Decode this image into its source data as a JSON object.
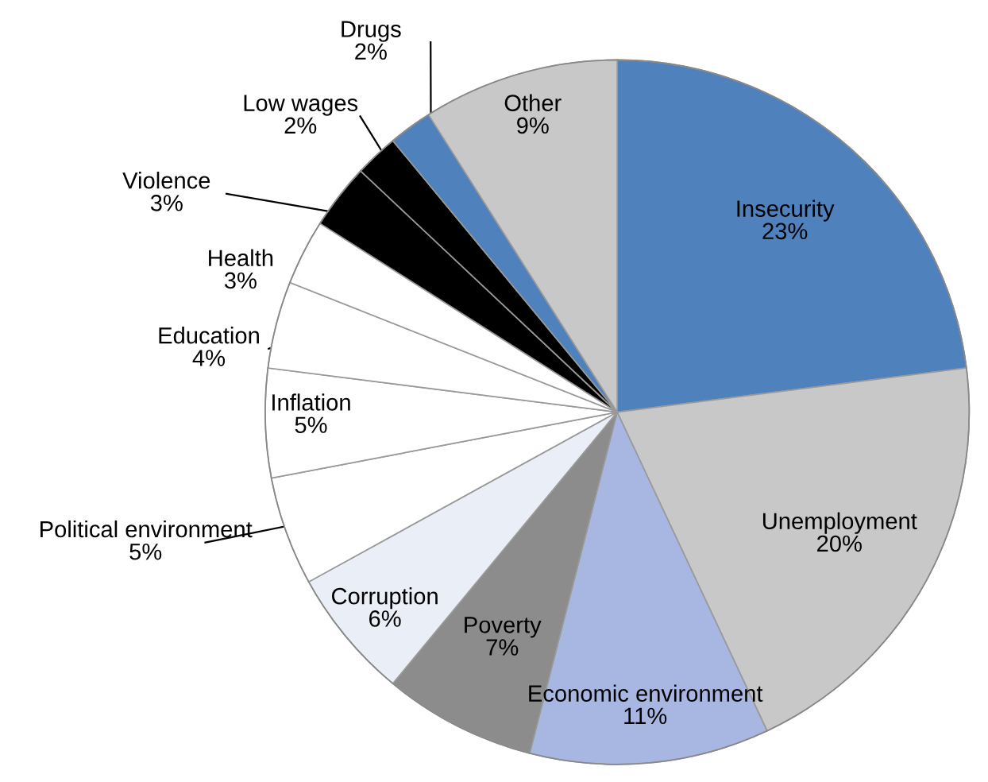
{
  "chart_data": {
    "type": "pie",
    "categories": [
      "Insecurity",
      "Unemployment",
      "Economic environment",
      "Poverty",
      "Corruption",
      "Political environment",
      "Inflation",
      "Education",
      "Health",
      "Violence",
      "Low wages",
      "Drugs",
      "Other"
    ],
    "values": [
      23,
      20,
      11,
      7,
      6,
      5,
      5,
      4,
      3,
      3,
      2,
      2,
      9
    ],
    "value_labels": [
      "23%",
      "20%",
      "11%",
      "7%",
      "6%",
      "5%",
      "5%",
      "4%",
      "3%",
      "3%",
      "2%",
      "2%",
      "9%"
    ],
    "colors": [
      "#4f81bd",
      "#c8c8c8",
      "#a7b7e1",
      "#8c8c8c",
      "#eaeef6",
      "#ffffff",
      "#ffffff",
      "#ffffff",
      "#ffffff",
      "#000000",
      "#000000",
      "#4f81bd",
      "#c8c8c8"
    ]
  }
}
